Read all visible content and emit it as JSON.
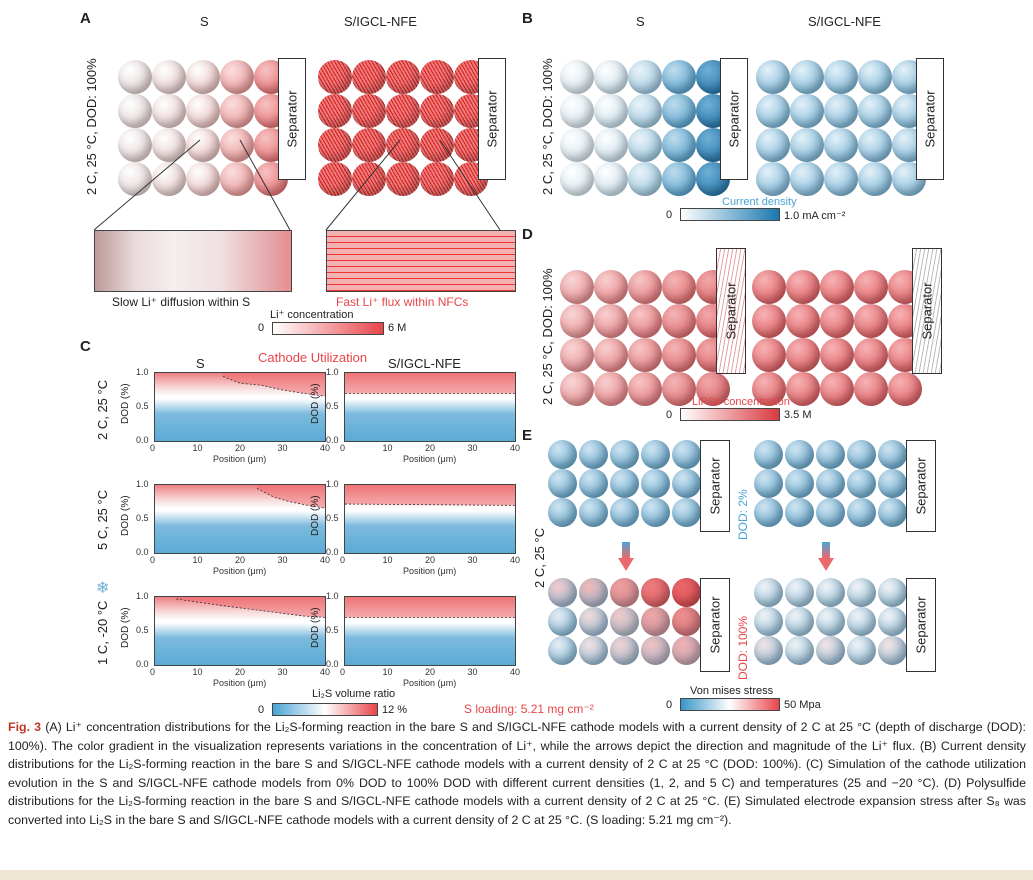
{
  "panels": {
    "a": {
      "label": "A",
      "title_left": "S",
      "title_right": "S/IGCL-NFE",
      "row_label": "2 C, 25 °C, DOD: 100%",
      "separator": "Separator",
      "zoom_left_caption": "Slow Li⁺ diffusion within S",
      "zoom_right_caption": "Fast Li⁺ flux within NFCs",
      "colorbar": {
        "title": "Li⁺ concentration",
        "min": "0",
        "max": "6  M",
        "color_low": "#ffffff",
        "color_high": "#e8454a"
      }
    },
    "b": {
      "label": "B",
      "title_left": "S",
      "title_right": "S/IGCL-NFE",
      "row_label": "2 C, 25 °C, DOD: 100%",
      "separator": "Separator",
      "colorbar": {
        "title": "Current density",
        "min": "0",
        "max": "1.0  mA cm⁻²",
        "color_low": "#ffffff",
        "color_high": "#1a78b0"
      }
    },
    "c": {
      "label": "C",
      "title_left": "S",
      "title_mid": "Cathode Utilization",
      "title_right": "S/IGCL-NFE",
      "rows": [
        "2 C, 25 °C",
        "5 C, 25 °C",
        "1 C, -20 °C"
      ],
      "ylabel": "DOD (%)",
      "xlabel": "Position (μm)",
      "yticks": [
        "1.0",
        "0.5",
        "0.0"
      ],
      "xticks": [
        "0",
        "10",
        "20",
        "30",
        "40"
      ],
      "colorbar": {
        "title": "Li₂S volume ratio",
        "min": "0",
        "max": "12 %",
        "color_low": "#4aa3d3",
        "color_high": "#e8454a"
      },
      "s_loading": "S loading: 5.21 mg cm⁻²"
    },
    "d": {
      "label": "D",
      "row_label": "2 C, 25 °C, DOD: 100%",
      "separator": "Separator",
      "colorbar": {
        "title": "LiPSs concentration",
        "min": "0",
        "max": "3.5 M",
        "color_low": "#ffffff",
        "color_high": "#d93a3f"
      }
    },
    "e": {
      "label": "E",
      "row_label": "2 C, 25 °C",
      "separator": "Separator",
      "dod_top": "DOD: 2%",
      "dod_bottom": "DOD: 100%",
      "colorbar": {
        "title": "Von mises stress",
        "min": "0",
        "max": "50  Mpa",
        "color_low": "#3a95c8",
        "color_high": "#e8454a"
      }
    }
  },
  "chart_data": [
    {
      "type": "heatmap",
      "title": "S, 2 C, 25 °C",
      "xlabel": "Position (μm)",
      "ylabel": "DOD (%)",
      "xlim": [
        0,
        40
      ],
      "ylim": [
        0.0,
        1.0
      ],
      "boundary_x": [
        16,
        20,
        25,
        30,
        35,
        40
      ],
      "boundary_y": [
        0.95,
        0.85,
        0.82,
        0.75,
        0.7,
        0.66
      ]
    },
    {
      "type": "heatmap",
      "title": "S/IGCL-NFE, 2 C, 25 °C",
      "xlabel": "Position (μm)",
      "ylabel": "DOD (%)",
      "xlim": [
        0,
        40
      ],
      "ylim": [
        0.0,
        1.0
      ],
      "boundary_x": [
        0,
        40
      ],
      "boundary_y": [
        0.7,
        0.7
      ]
    },
    {
      "type": "heatmap",
      "title": "S, 5 C, 25 °C",
      "xlabel": "Position (μm)",
      "ylabel": "DOD (%)",
      "xlim": [
        0,
        40
      ],
      "ylim": [
        0.0,
        1.0
      ],
      "boundary_x": [
        24,
        28,
        32,
        36,
        40
      ],
      "boundary_y": [
        0.95,
        0.82,
        0.75,
        0.7,
        0.66
      ]
    },
    {
      "type": "heatmap",
      "title": "S/IGCL-NFE, 5 C, 25 °C",
      "xlabel": "Position (μm)",
      "ylabel": "DOD (%)",
      "xlim": [
        0,
        40
      ],
      "ylim": [
        0.0,
        1.0
      ],
      "boundary_x": [
        0,
        40
      ],
      "boundary_y": [
        0.72,
        0.7
      ]
    },
    {
      "type": "heatmap",
      "title": "S, 1 C, -20 °C",
      "xlabel": "Position (μm)",
      "ylabel": "DOD (%)",
      "xlim": [
        0,
        40
      ],
      "ylim": [
        0.0,
        1.0
      ],
      "boundary_x": [
        5,
        15,
        25,
        35,
        40
      ],
      "boundary_y": [
        0.97,
        0.88,
        0.8,
        0.72,
        0.7
      ]
    },
    {
      "type": "heatmap",
      "title": "S/IGCL-NFE, 1 C, -20 °C",
      "xlabel": "Position (μm)",
      "ylabel": "DOD (%)",
      "xlim": [
        0,
        40
      ],
      "ylim": [
        0.0,
        1.0
      ],
      "boundary_x": [
        0,
        40
      ],
      "boundary_y": [
        0.7,
        0.7
      ]
    }
  ],
  "caption": {
    "fig": "Fig. 3",
    "text": " (A) Li⁺ concentration distributions for the Li₂S-forming reaction in the bare S and S/IGCL-NFE cathode models with a current density of 2 C at 25 °C (depth of discharge (DOD): 100%). The color gradient in the visualization represents variations in the concentration of Li⁺, while the arrows depict the direction and magnitude of the Li⁺ flux. (B) Current density distributions for the Li₂S-forming reaction in the bare S and S/IGCL-NFE cathode models with a current density of 2 C at 25 °C (DOD: 100%). (C) Simulation of the cathode utilization evolution in the S and S/IGCL-NFE cathode models from 0% DOD to 100% DOD with different current densities (1, 2, and 5 C) and temperatures (25 and −20 °C). (D) Polysulfide distributions for the Li₂S-forming reaction in the bare S and S/IGCL-NFE cathode models with a current density of 2 C at 25 °C. (E) Simulated electrode expansion stress after S₈ was converted into Li₂S in the bare S and S/IGCL-NFE cathode models with a current density of 2 C at 25 °C. (S loading: 5.21 mg cm⁻²)."
  }
}
